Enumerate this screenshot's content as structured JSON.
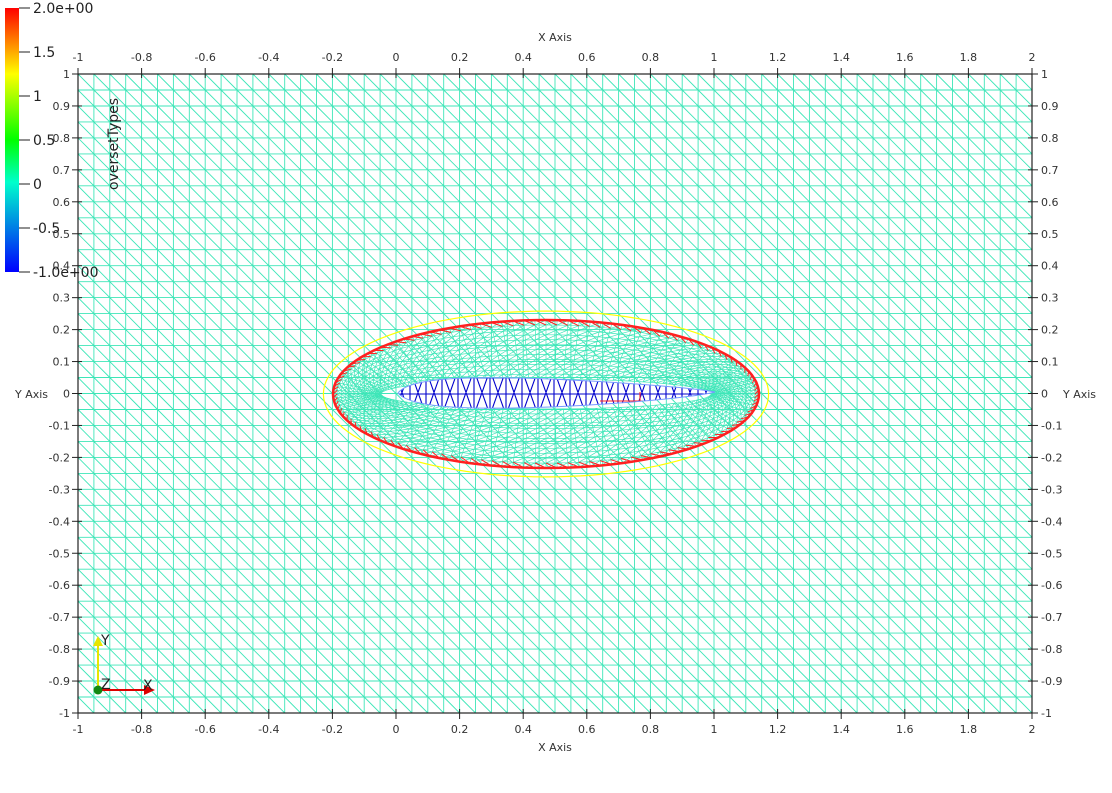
{
  "viewer": {
    "colorbar": {
      "title": "oversetTypes",
      "labels": [
        "2.0e+00",
        "1.5",
        "1",
        "0.5",
        "0",
        "-0.5",
        "-1.0e+00"
      ],
      "colors": [
        "#ff0000",
        "#ffff00",
        "#00ff00",
        "#00ffcc",
        "#0000ff"
      ]
    },
    "axes": {
      "x_title": "X Axis",
      "y_title": "Y Axis",
      "x_ticks": [
        "-1",
        "-0.8",
        "-0.6",
        "-0.4",
        "-0.2",
        "0",
        "0.2",
        "0.4",
        "0.6",
        "0.8",
        "1",
        "1.2",
        "1.4",
        "1.6",
        "1.8",
        "2"
      ],
      "y_ticks": [
        "1",
        "0.9",
        "0.8",
        "0.7",
        "0.6",
        "0.5",
        "0.4",
        "0.3",
        "0.2",
        "0.1",
        "0",
        "-0.1",
        "-0.2",
        "-0.3",
        "-0.4",
        "-0.5",
        "-0.6",
        "-0.7",
        "-0.8",
        "-0.9",
        "-1"
      ]
    },
    "orientation": {
      "x": "X",
      "y": "Y",
      "z": "Z"
    },
    "mesh_colors": {
      "background": "#3ee6b8",
      "overset_inner": "#0000cc",
      "overset_fringe": "#ff2020",
      "overset_outer": "#ffff00"
    }
  }
}
